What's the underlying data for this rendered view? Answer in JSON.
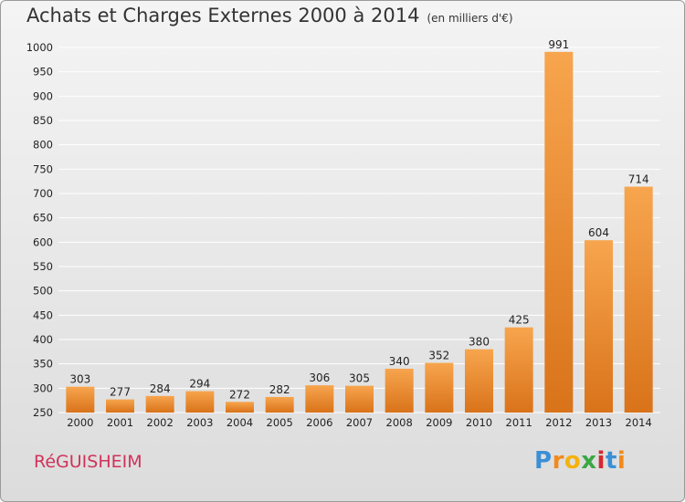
{
  "header": {
    "title": "Achats et Charges Externes 2000 à 2014",
    "subtitle": "(en milliers d'€)"
  },
  "footer": {
    "city": "RéGUISHEIM"
  },
  "logo": {
    "letters": [
      "P",
      "r",
      "o",
      "x",
      "i",
      "t",
      "i"
    ],
    "colors": [
      "#3a8fd6",
      "#f08a1c",
      "#f4b20e",
      "#3aa843",
      "#d6282f",
      "#3a8fd6",
      "#f08a1c"
    ]
  },
  "colors": {
    "bar_top": "#f7a54e",
    "bar_bottom": "#d9731a",
    "grid": "#ffffff"
  },
  "chart_data": {
    "type": "bar",
    "title": "Achats et Charges Externes 2000 à 2014",
    "subtitle": "(en milliers d'€)",
    "categories": [
      "2000",
      "2001",
      "2002",
      "2003",
      "2004",
      "2005",
      "2006",
      "2007",
      "2008",
      "2009",
      "2010",
      "2011",
      "2012",
      "2013",
      "2014"
    ],
    "values": [
      303,
      277,
      284,
      294,
      272,
      282,
      306,
      305,
      340,
      352,
      380,
      425,
      991,
      604,
      714
    ],
    "ylim": [
      250,
      1000
    ],
    "yticks": [
      250,
      300,
      350,
      400,
      450,
      500,
      550,
      600,
      650,
      700,
      750,
      800,
      850,
      900,
      950,
      1000
    ],
    "grid": true
  }
}
